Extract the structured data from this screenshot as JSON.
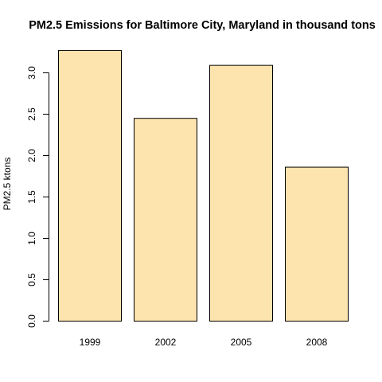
{
  "chart_data": {
    "type": "bar",
    "title": "PM2.5 Emissions for Baltimore City, Maryland in thousand tons",
    "xlabel": "",
    "ylabel": "PM2.5 ktons",
    "categories": [
      "1999",
      "2002",
      "2005",
      "2008"
    ],
    "values": [
      3.27,
      2.45,
      3.09,
      1.86
    ],
    "ylim": [
      0,
      3.3
    ],
    "yticks": [
      0,
      0.5,
      1,
      1.5,
      2,
      2.5,
      3
    ],
    "ytick_labels": [
      "0.0",
      "0.5",
      "1.0",
      "1.5",
      "2.0",
      "2.5",
      "3.0"
    ],
    "bar_color": "#FDE3AD",
    "grid": false,
    "legend": "none"
  }
}
